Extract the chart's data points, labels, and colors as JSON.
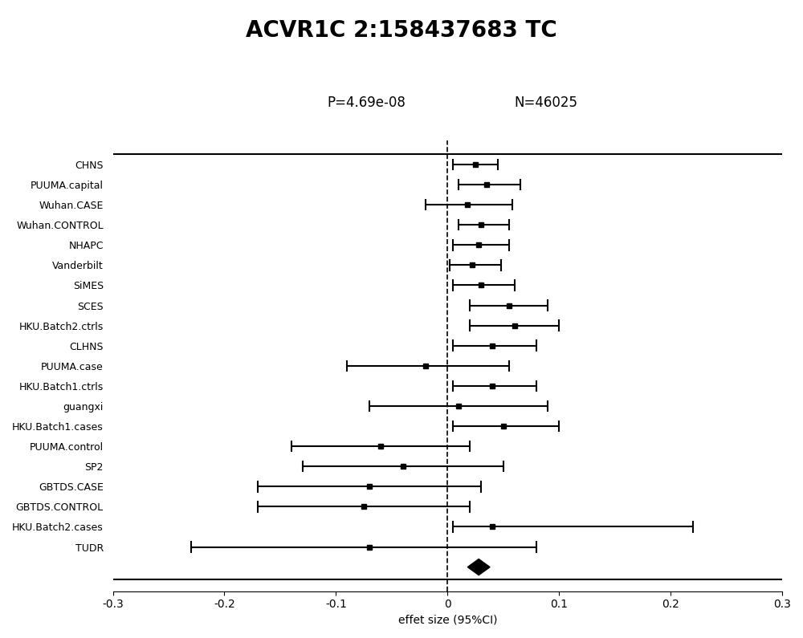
{
  "title": "ACVR1C 2:158437683 TC",
  "p_value": "P=4.69e-08",
  "n_value": "N=46025",
  "xlabel": "effet size (95%CI)",
  "xlim": [
    -0.3,
    0.3
  ],
  "xticks": [
    -0.3,
    -0.2,
    -0.1,
    0,
    0.1,
    0.2,
    0.3
  ],
  "studies": [
    "CHNS",
    "PUUMA.capital",
    "Wuhan.CASE",
    "Wuhan.CONTROL",
    "NHAPC",
    "Vanderbilt",
    "SiMES",
    "SCES",
    "HKU.Batch2.ctrls",
    "CLHNS",
    "PUUMA.case",
    "HKU.Batch1.ctrls",
    "guangxi",
    "HKU.Batch1.cases",
    "PUUMA.control",
    "SP2",
    "GBTDS.CASE",
    "GBTDS.CONTROL",
    "HKU.Batch2.cases",
    "TUDR"
  ],
  "effects": [
    0.025,
    0.035,
    0.018,
    0.03,
    0.028,
    0.022,
    0.03,
    0.055,
    0.06,
    0.04,
    -0.02,
    0.04,
    0.01,
    0.05,
    -0.06,
    -0.04,
    -0.07,
    -0.075,
    0.04,
    -0.07
  ],
  "ci_low": [
    0.005,
    0.01,
    -0.02,
    0.01,
    0.005,
    0.002,
    0.005,
    0.02,
    0.02,
    0.005,
    -0.09,
    0.005,
    -0.07,
    0.005,
    -0.14,
    -0.13,
    -0.17,
    -0.17,
    0.005,
    -0.23
  ],
  "ci_high": [
    0.045,
    0.065,
    0.058,
    0.055,
    0.055,
    0.048,
    0.06,
    0.09,
    0.1,
    0.08,
    0.055,
    0.08,
    0.09,
    0.1,
    0.02,
    0.05,
    0.03,
    0.02,
    0.22,
    0.08
  ],
  "diamond_effect": 0.028,
  "diamond_ci_low": 0.018,
  "diamond_ci_high": 0.038,
  "background_color": "#ffffff",
  "line_color": "#000000",
  "marker_color": "#000000"
}
